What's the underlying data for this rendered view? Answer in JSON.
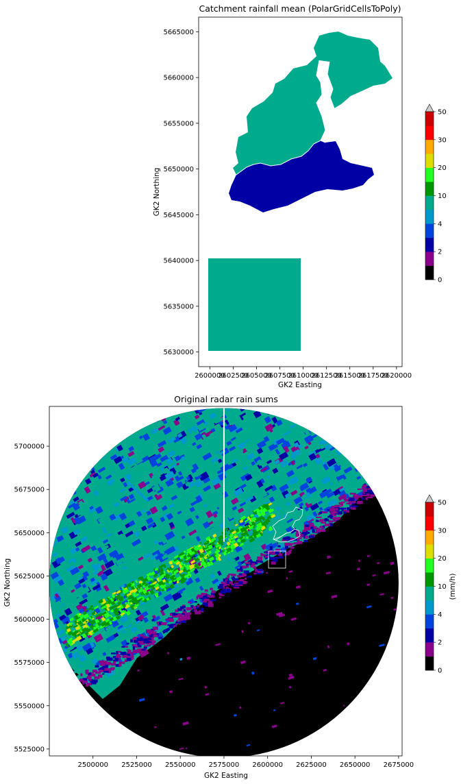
{
  "charts": [
    {
      "type": "choropleth-map",
      "title": "Catchment rainfall mean (PolarGridCellsToPoly)",
      "xlabel": "GK2 Easting",
      "ylabel": "GK2 Northing",
      "xlim": [
        2598800,
        2620600
      ],
      "ylim": [
        5628400,
        5666600
      ],
      "xticks": [
        2600000,
        2602500,
        2605000,
        2607500,
        2610000,
        2612500,
        2615000,
        2617500,
        2620000
      ],
      "xtick_labels": [
        "2600000",
        "2602500",
        "2605000",
        "2607500",
        "2610000",
        "2612500",
        "2615000",
        "2617500",
        "2620000"
      ],
      "yticks": [
        5630000,
        5635000,
        5640000,
        5645000,
        5650000,
        5655000,
        5660000,
        5665000
      ],
      "ytick_labels": [
        "5630000",
        "5635000",
        "5640000",
        "5645000",
        "5650000",
        "5655000",
        "5660000",
        "5665000"
      ],
      "catchment_colors": {
        "north": "#00aa8c",
        "south": "#0000a5",
        "box": "#00aa8c"
      },
      "colorbar": {
        "levels": [
          "0",
          "2",
          "4",
          "10",
          "20",
          "30",
          "50"
        ],
        "unit": "",
        "extend": "max"
      }
    },
    {
      "type": "radar-heatmap",
      "title": "Original radar rain sums",
      "xlabel": "GK2 Easting",
      "ylabel": "GK2 Northing",
      "xlim": [
        2475000,
        2677000
      ],
      "ylim": [
        5521000,
        5723000
      ],
      "xticks": [
        2500000,
        2525000,
        2550000,
        2575000,
        2600000,
        2625000,
        2650000,
        2675000
      ],
      "xtick_labels": [
        "2500000",
        "2525000",
        "2550000",
        "2575000",
        "2600000",
        "2625000",
        "2650000",
        "2675000"
      ],
      "yticks": [
        5525000,
        5550000,
        5575000,
        5600000,
        5625000,
        5650000,
        5675000,
        5700000
      ],
      "ytick_labels": [
        "5525000",
        "5550000",
        "5575000",
        "5600000",
        "5625000",
        "5650000",
        "5675000",
        "5700000"
      ],
      "radar_center": [
        2575000,
        5621000
      ],
      "radar_radius_km": 100,
      "colorbar": {
        "levels": [
          "0",
          "2",
          "4",
          "10",
          "20",
          "30",
          "50"
        ],
        "unit": "(mm/h)",
        "extend": "max"
      }
    }
  ],
  "colormap": [
    "#000000",
    "#8a008a",
    "#0000a5",
    "#0044dd",
    "#0099cc",
    "#00aa8c",
    "#009600",
    "#22ff22",
    "#dddd00",
    "#ffaa00",
    "#ff0000",
    "#cc0000"
  ]
}
